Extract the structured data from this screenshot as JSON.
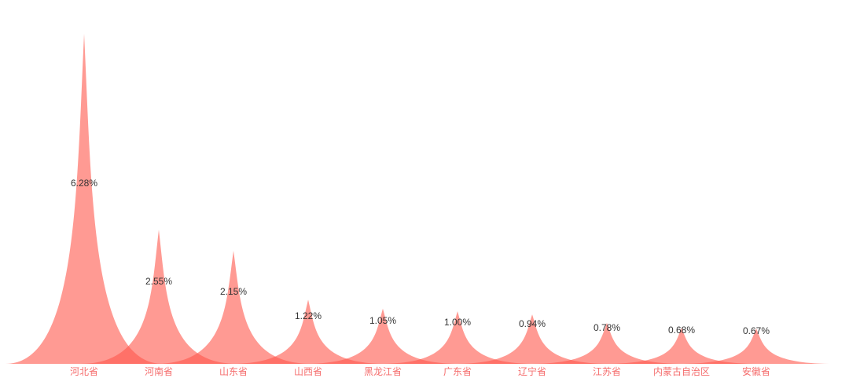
{
  "chart_data": {
    "type": "bar",
    "variant": "pictorial-peak-spikes",
    "categories": [
      "河北省",
      "河南省",
      "山东省",
      "山西省",
      "黑龙江省",
      "广东省",
      "辽宁省",
      "江苏省",
      "内蒙古自治区",
      "安徽省"
    ],
    "values": [
      6.28,
      2.55,
      2.15,
      1.22,
      1.05,
      1.0,
      0.94,
      0.78,
      0.68,
      0.67
    ],
    "value_labels": [
      "6.28%",
      "2.55%",
      "2.15%",
      "1.22%",
      "1.05%",
      "1.00%",
      "0.94%",
      "0.78%",
      "0.68%",
      "0.67%"
    ],
    "title": "",
    "xlabel": "",
    "ylabel": "",
    "ylim": [
      0,
      6.28
    ],
    "unit": "%",
    "grid": false,
    "legend": false,
    "axes_visible": false,
    "layout_hints": {
      "peaks_overlap": true,
      "value_label_position": "inside-upper-middle-of-peak",
      "category_label_position": "below-baseline"
    },
    "colors": {
      "peak_fill": "#FF574B",
      "peak_opacity": 0.6,
      "value_label": "#333333",
      "category_label": "#F56C6C",
      "background": "#FFFFFF"
    }
  }
}
